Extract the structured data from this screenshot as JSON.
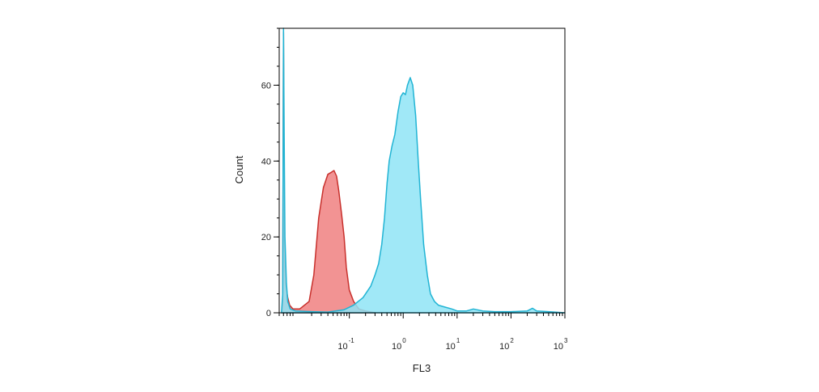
{
  "chart_data": {
    "type": "area",
    "title": "",
    "xlabel": "FL3",
    "ylabel": "Count",
    "x_scale": "log",
    "xlim": [
      0.005,
      1000
    ],
    "ylim": [
      0,
      75
    ],
    "grid": false,
    "x_ticks": [
      {
        "value": 0.1,
        "base": "10",
        "exp": "-1"
      },
      {
        "value": 1,
        "base": "10",
        "exp": "0"
      },
      {
        "value": 10,
        "base": "10",
        "exp": "1"
      },
      {
        "value": 100,
        "base": "10",
        "exp": "2"
      },
      {
        "value": 1000,
        "base": "10",
        "exp": "3"
      }
    ],
    "y_ticks": [
      {
        "value": 0,
        "label": "0"
      },
      {
        "value": 20,
        "label": "20"
      },
      {
        "value": 40,
        "label": "40"
      },
      {
        "value": 60,
        "label": "60"
      }
    ],
    "series": [
      {
        "color": "#f08080",
        "stroke": "#c8302c",
        "points": [
          [
            0.0055,
            0
          ],
          [
            0.0058,
            2
          ],
          [
            0.006,
            74
          ],
          [
            0.0062,
            20
          ],
          [
            0.0065,
            8
          ],
          [
            0.0072,
            4
          ],
          [
            0.0078,
            2
          ],
          [
            0.009,
            1
          ],
          [
            0.012,
            1
          ],
          [
            0.018,
            3
          ],
          [
            0.022,
            10
          ],
          [
            0.027,
            25
          ],
          [
            0.033,
            33
          ],
          [
            0.04,
            36.5
          ],
          [
            0.046,
            37
          ],
          [
            0.052,
            37.5
          ],
          [
            0.058,
            36
          ],
          [
            0.064,
            32
          ],
          [
            0.072,
            26
          ],
          [
            0.08,
            20
          ],
          [
            0.088,
            12
          ],
          [
            0.1,
            6
          ],
          [
            0.12,
            3
          ],
          [
            0.15,
            1
          ],
          [
            0.2,
            0.5
          ],
          [
            0.3,
            0
          ]
        ]
      },
      {
        "color": "#8fe4f6",
        "stroke": "#21b4d4",
        "points": [
          [
            0.0055,
            0
          ],
          [
            0.0058,
            5
          ],
          [
            0.006,
            75
          ],
          [
            0.0062,
            45
          ],
          [
            0.0064,
            20
          ],
          [
            0.0068,
            8
          ],
          [
            0.0072,
            3
          ],
          [
            0.008,
            1
          ],
          [
            0.01,
            0.5
          ],
          [
            0.02,
            0.3
          ],
          [
            0.04,
            0.2
          ],
          [
            0.08,
            0.8
          ],
          [
            0.12,
            2
          ],
          [
            0.18,
            4
          ],
          [
            0.25,
            7
          ],
          [
            0.3,
            10
          ],
          [
            0.35,
            13
          ],
          [
            0.4,
            18
          ],
          [
            0.45,
            25
          ],
          [
            0.5,
            34
          ],
          [
            0.55,
            40
          ],
          [
            0.62,
            44
          ],
          [
            0.7,
            47
          ],
          [
            0.8,
            53
          ],
          [
            0.9,
            57
          ],
          [
            1.0,
            58
          ],
          [
            1.1,
            57.5
          ],
          [
            1.2,
            60
          ],
          [
            1.35,
            62
          ],
          [
            1.5,
            60
          ],
          [
            1.7,
            52
          ],
          [
            1.9,
            40
          ],
          [
            2.1,
            30
          ],
          [
            2.4,
            18
          ],
          [
            2.8,
            10
          ],
          [
            3.2,
            5
          ],
          [
            3.8,
            3
          ],
          [
            4.5,
            2
          ],
          [
            6,
            1.5
          ],
          [
            8,
            1
          ],
          [
            10,
            0.5
          ],
          [
            15,
            0.5
          ],
          [
            20,
            1
          ],
          [
            30,
            0.5
          ],
          [
            50,
            0.3
          ],
          [
            100,
            0.3
          ],
          [
            200,
            0.5
          ],
          [
            250,
            1.2
          ],
          [
            300,
            0.5
          ],
          [
            500,
            0.3
          ],
          [
            1000,
            0
          ]
        ]
      }
    ]
  }
}
